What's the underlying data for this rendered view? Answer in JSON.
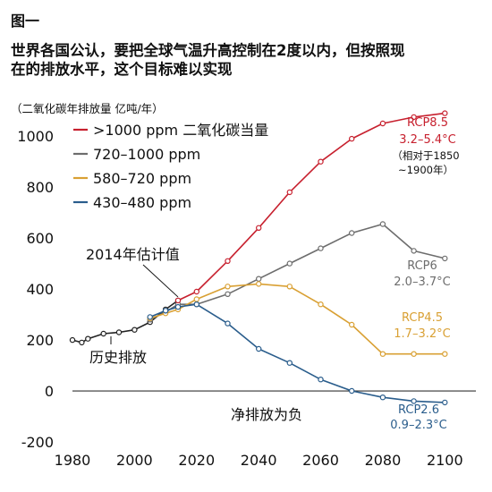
{
  "figure_label": "图一",
  "headline_line1": "世界各国公认，要把全球气温升高控制在2度以内，但按照现",
  "headline_line2": "在的排放水平，这个目标难以实现",
  "unit_label": "（二氧化碳年排放量 亿吨/年）",
  "colors": {
    "historical": "#222222",
    "rcp85": "#c7202e",
    "rcp6": "#6d6d6d",
    "rcp45": "#d9a033",
    "rcp26": "#2a5d8c",
    "axis": "#333333"
  },
  "chart_data": {
    "type": "line",
    "xlim": [
      1980,
      2110
    ],
    "ylim": [
      -200,
      1050
    ],
    "x_ticks": [
      "1980",
      "2000",
      "2020",
      "2040",
      "2060",
      "2080",
      "2100"
    ],
    "y_ticks": [
      "1000",
      "800",
      "600",
      "400",
      "200",
      "0",
      "-200"
    ],
    "legend": [
      {
        "label": ">1000 ppm 二氧化碳当量",
        "series": "rcp85"
      },
      {
        "label": "720–1000 ppm",
        "series": "rcp6"
      },
      {
        "label": "580–720 ppm",
        "series": "rcp45"
      },
      {
        "label": "430–480 ppm",
        "series": "rcp26"
      }
    ],
    "annotations": {
      "estimate_2014": "2014年估计值",
      "historical": "历史排放",
      "net_negative": "净排放为负",
      "relative_note_1": "（相对于1850",
      "relative_note_2": "~1900年）"
    },
    "series": [
      {
        "key": "historical",
        "points": [
          [
            1980,
            200
          ],
          [
            1983,
            190
          ],
          [
            1985,
            205
          ],
          [
            1990,
            225
          ],
          [
            1995,
            230
          ],
          [
            2000,
            240
          ],
          [
            2005,
            270
          ],
          [
            2010,
            320
          ],
          [
            2014,
            355
          ]
        ]
      },
      {
        "key": "rcp85",
        "name": "RCP8.5",
        "range": "3.2–5.4°C",
        "points": [
          [
            2014,
            355
          ],
          [
            2020,
            390
          ],
          [
            2030,
            510
          ],
          [
            2040,
            640
          ],
          [
            2050,
            780
          ],
          [
            2060,
            900
          ],
          [
            2070,
            990
          ],
          [
            2080,
            1050
          ],
          [
            2090,
            1075
          ],
          [
            2100,
            1090
          ]
        ]
      },
      {
        "key": "rcp6",
        "name": "RCP6",
        "range": "2.0–3.7°C",
        "points": [
          [
            2005,
            280
          ],
          [
            2010,
            310
          ],
          [
            2014,
            340
          ],
          [
            2020,
            340
          ],
          [
            2030,
            380
          ],
          [
            2040,
            440
          ],
          [
            2050,
            500
          ],
          [
            2060,
            560
          ],
          [
            2070,
            620
          ],
          [
            2080,
            655
          ],
          [
            2090,
            550
          ],
          [
            2100,
            520
          ]
        ]
      },
      {
        "key": "rcp45",
        "name": "RCP4.5",
        "range": "1.7–3.2°C",
        "points": [
          [
            2005,
            285
          ],
          [
            2010,
            305
          ],
          [
            2014,
            320
          ],
          [
            2020,
            360
          ],
          [
            2030,
            410
          ],
          [
            2040,
            420
          ],
          [
            2050,
            410
          ],
          [
            2060,
            340
          ],
          [
            2070,
            260
          ],
          [
            2080,
            145
          ],
          [
            2090,
            145
          ],
          [
            2100,
            145
          ]
        ]
      },
      {
        "key": "rcp26",
        "name": "RCP2.6",
        "range": "0.9–2.3°C",
        "points": [
          [
            2005,
            290
          ],
          [
            2010,
            315
          ],
          [
            2014,
            330
          ],
          [
            2020,
            340
          ],
          [
            2030,
            265
          ],
          [
            2040,
            165
          ],
          [
            2050,
            110
          ],
          [
            2060,
            45
          ],
          [
            2070,
            0
          ],
          [
            2080,
            -25
          ],
          [
            2090,
            -40
          ],
          [
            2100,
            -45
          ]
        ]
      }
    ]
  }
}
